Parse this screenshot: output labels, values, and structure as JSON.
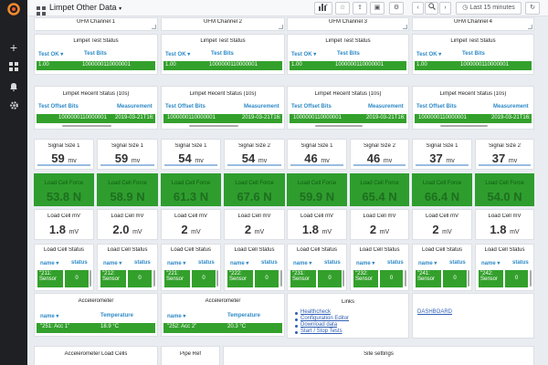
{
  "app": {
    "title": "Limpet Other Data"
  },
  "timepicker": {
    "label": "Last 15 minutes"
  },
  "sidebar": {
    "icons": [
      "grafana-logo-icon",
      "plus-icon",
      "dashboards-icon",
      "bell-icon",
      "gear-icon"
    ]
  },
  "ufm": [
    "UFM Channel 1",
    "UFM Channel 2",
    "UFM Channel 3",
    "UFM Channel 4"
  ],
  "test_status": {
    "title": "Limpet Test Status",
    "col1": "Test OK ▾",
    "col2": "Test Bits",
    "val1": "1.00",
    "val2": "1000000110000001"
  },
  "recent_status": {
    "title": "Limpet Recent Status (10s)",
    "col1": "Test Offset Bits",
    "col2": "Measurement",
    "val1": "1000000110000001",
    "val2": "2019-03-21T16:"
  },
  "signals": [
    {
      "title": "Signal Size 1",
      "value": "59",
      "unit": "mv",
      "load_label": "Load Cell Force",
      "load": "53.8 N"
    },
    {
      "title": "Signal Size 1",
      "value": "59",
      "unit": "mv",
      "load_label": "Load Cell Force",
      "load": "58.9 N"
    },
    {
      "title": "Signal Size 1",
      "value": "54",
      "unit": "mv",
      "load_label": "Load Cell Force",
      "load": "61.3 N"
    },
    {
      "title": "Signal Size 2",
      "value": "54",
      "unit": "mv",
      "load_label": "Load Cell Force",
      "load": "67.6 N"
    },
    {
      "title": "Signal Size 1",
      "value": "46",
      "unit": "mv",
      "load_label": "Load Cell Force",
      "load": "59.9 N"
    },
    {
      "title": "Signal Size 2",
      "value": "46",
      "unit": "mv",
      "load_label": "Load Cell Force",
      "load": "65.4 N"
    },
    {
      "title": "Signal Size 1",
      "value": "37",
      "unit": "mv",
      "load_label": "Load Cell Force",
      "load": "66.4 N"
    },
    {
      "title": "Signal Size 2",
      "value": "37",
      "unit": "mv",
      "load_label": "Load Cell Force",
      "load": "54.0 N"
    }
  ],
  "loadcells": [
    {
      "title": "Load Cell mV",
      "value": "1.8",
      "unit": "mV"
    },
    {
      "title": "Load Cell mV",
      "value": "2.0",
      "unit": "mV"
    },
    {
      "title": "Load Cell mV",
      "value": "2",
      "unit": "mV"
    },
    {
      "title": "Load Cell mV",
      "value": "2",
      "unit": "mV"
    },
    {
      "title": "Load Cell mV",
      "value": "1.8",
      "unit": "mV"
    },
    {
      "title": "Load Cell mV",
      "value": "2",
      "unit": "mV"
    },
    {
      "title": "Load Cell mV",
      "value": "2",
      "unit": "mV"
    },
    {
      "title": "Load Cell mV",
      "value": "1.8",
      "unit": "mV"
    }
  ],
  "lcstatus": {
    "title": "Load Cell Status",
    "col1": "name ▾",
    "col2": "status",
    "rows": [
      {
        "name": "\"211: Sensor",
        "status": "0"
      },
      {
        "name": "\"212: Sensor",
        "status": "0"
      },
      {
        "name": "\"221: Sensor",
        "status": "0"
      },
      {
        "name": "\"222: Sensor",
        "status": "0"
      },
      {
        "name": "\"231: Sensor",
        "status": "0"
      },
      {
        "name": "\"232: Sensor",
        "status": "0"
      },
      {
        "name": "\"241: Sensor",
        "status": "0"
      },
      {
        "name": "\"242: Sensor",
        "status": "0"
      }
    ]
  },
  "accel": [
    {
      "title": "Accelerometer",
      "col1": "name ▾",
      "col2": "Temperature",
      "name": "\"251: Acc 1\"",
      "temp": "18.9 °C"
    },
    {
      "title": "Accelerometer",
      "col1": "name ▾",
      "col2": "Temperature",
      "name": "\"252: Acc 2\"",
      "temp": "20.3 °C"
    }
  ],
  "links": {
    "title": "Links",
    "items": [
      "Healthcheck",
      "Configuration Editor",
      "Download data",
      "Start / Stop Tests"
    ]
  },
  "dashboard_link": "DASHBOARD",
  "bottom": [
    "Accelerometer Load Cells",
    "Pipe Ref",
    "Site settings"
  ]
}
